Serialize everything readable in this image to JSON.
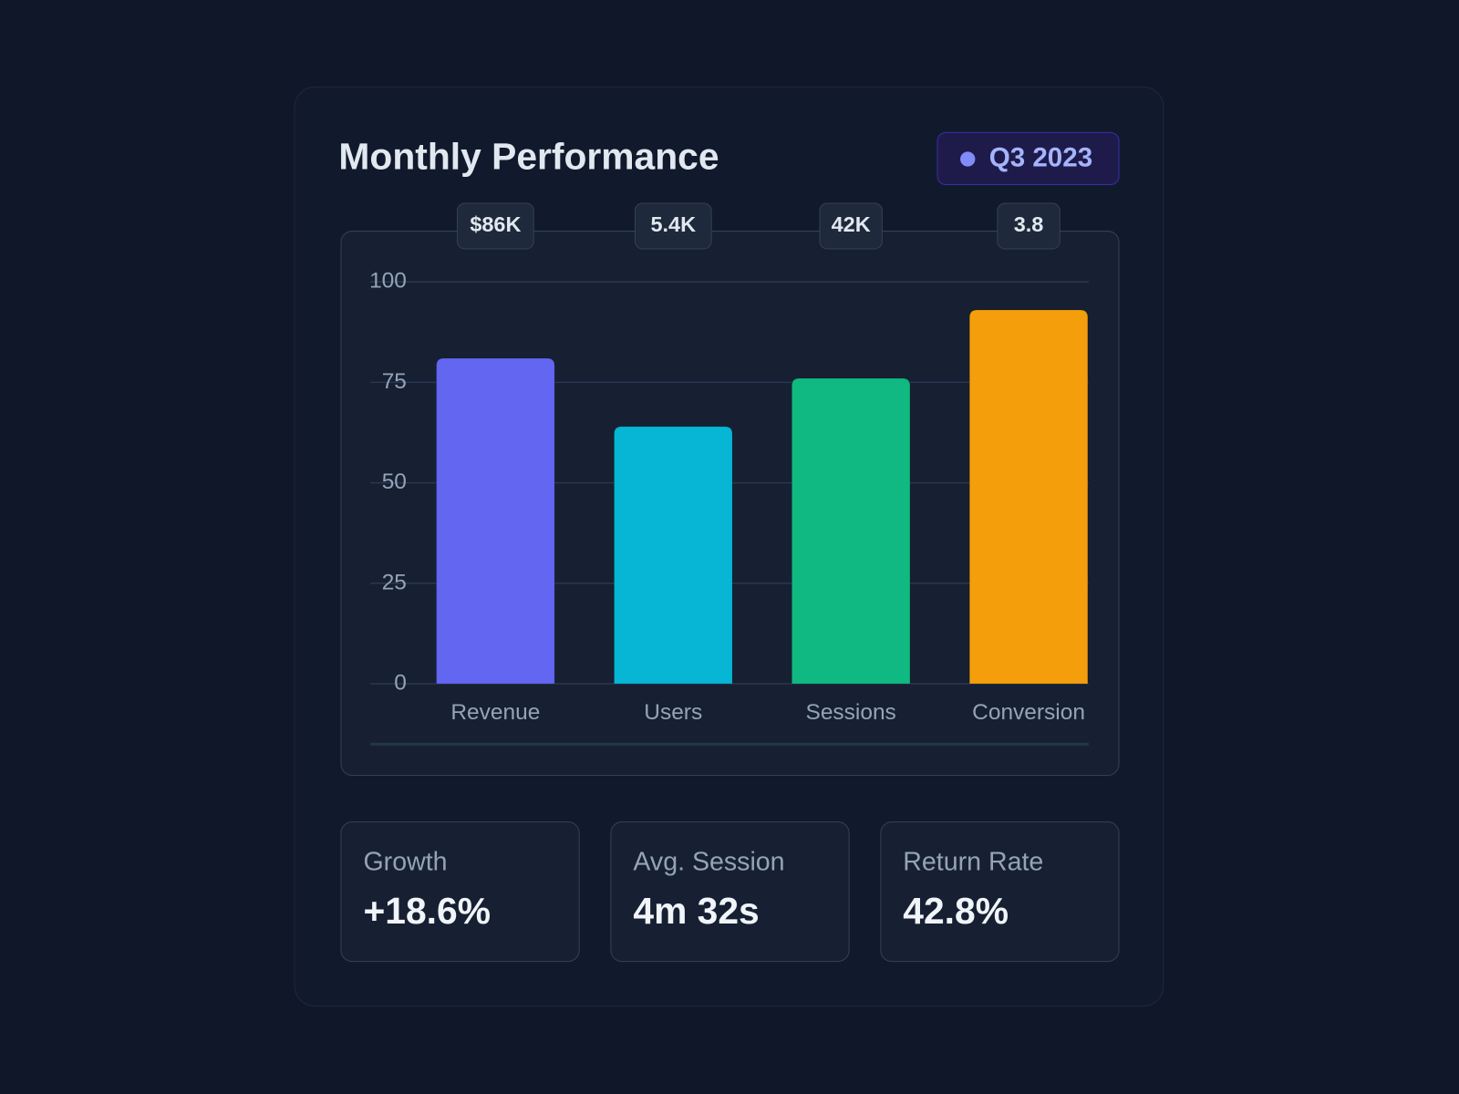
{
  "chart_data": {
    "type": "bar",
    "title": "Monthly Performance",
    "badge": "Q3 2023",
    "categories": [
      "Revenue",
      "Users",
      "Sessions",
      "Conversion"
    ],
    "values": [
      81,
      64,
      76,
      93
    ],
    "colors": [
      "#6366f1",
      "#06b6d4",
      "#10b981",
      "#f59e0b"
    ],
    "annotations": [
      "$86K",
      "5.4K",
      "42K",
      "3.8"
    ],
    "ylim": [
      0,
      100
    ],
    "yticks": [
      0,
      25,
      50,
      75,
      100
    ],
    "grid": true
  },
  "stats": [
    {
      "label": "Growth",
      "value": "+18.6%"
    },
    {
      "label": "Avg. Session",
      "value": "4m 32s"
    },
    {
      "label": "Return Rate",
      "value": "42.8%"
    }
  ]
}
